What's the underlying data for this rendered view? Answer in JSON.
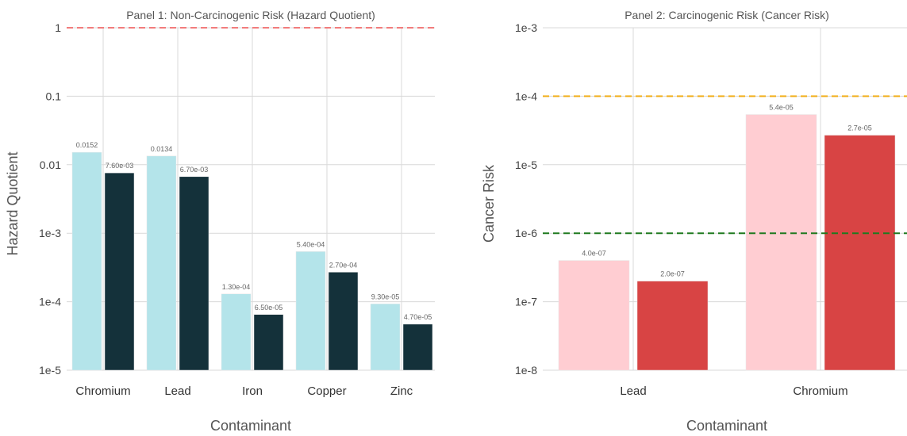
{
  "chart_data": [
    {
      "type": "bar",
      "title": "Panel 1: Non-Carcinogenic Risk (Hazard Quotient)",
      "xlabel": "Contaminant",
      "ylabel": "Hazard Quotient",
      "yscale": "log",
      "ylim": [
        1e-05,
        1
      ],
      "yticks": [
        "1e-5",
        "1e-4",
        "1e-3",
        "0.01",
        "0.1",
        "1"
      ],
      "categories": [
        "Chromium",
        "Lead",
        "Iron",
        "Copper",
        "Zinc"
      ],
      "series": [
        {
          "values": [
            0.0152,
            0.0134,
            0.00013,
            0.00054,
            9.3e-05
          ],
          "labels": [
            "0.0152",
            "0.0134",
            "1.30e-04",
            "5.40e-04",
            "9.30e-05"
          ],
          "color": "#b4e4ea"
        },
        {
          "values": [
            0.0076,
            0.0067,
            6.5e-05,
            0.00027,
            4.7e-05
          ],
          "labels": [
            "7.60e-03",
            "6.70e-03",
            "6.50e-05",
            "2.70e-04",
            "4.70e-05"
          ],
          "color": "#14313a"
        }
      ],
      "reference_lines": [
        {
          "value": 1,
          "color": "#f27c7c",
          "style": "dashed"
        }
      ],
      "grid": true,
      "legend": "none"
    },
    {
      "type": "bar",
      "title": "Panel 2: Carcinogenic Risk (Cancer Risk)",
      "xlabel": "Contaminant",
      "ylabel": "Cancer Risk",
      "yscale": "log",
      "ylim": [
        1e-08,
        0.001
      ],
      "yticks": [
        "1e-8",
        "1e-7",
        "1e-6",
        "1e-5",
        "1e-4",
        "1e-3"
      ],
      "categories": [
        "Lead",
        "Chromium"
      ],
      "series": [
        {
          "values": [
            4e-07,
            5.4e-05
          ],
          "labels": [
            "4.0e-07",
            "5.4e-05"
          ],
          "color": "#ffcdd2"
        },
        {
          "values": [
            2e-07,
            2.7e-05
          ],
          "labels": [
            "2.0e-07",
            "2.7e-05"
          ],
          "color": "#d84444"
        }
      ],
      "reference_lines": [
        {
          "value": 0.0001,
          "color": "#f2b01e",
          "style": "dashed"
        },
        {
          "value": 1e-06,
          "color": "#1f7a1f",
          "style": "dashed"
        }
      ],
      "grid": true,
      "legend": "none"
    }
  ]
}
